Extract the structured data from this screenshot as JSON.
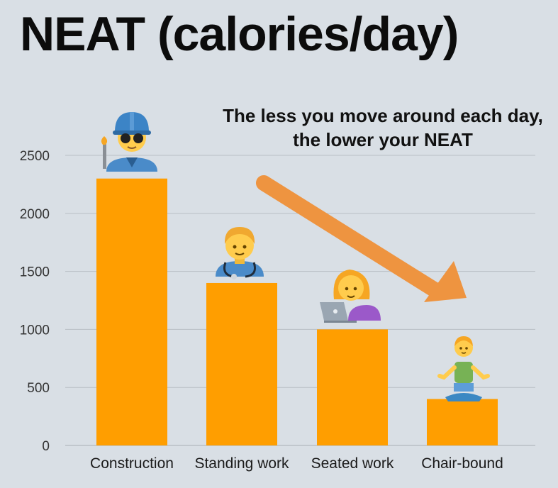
{
  "title": "NEAT (calories/day)",
  "annotation": "The less you move around each day, the lower your NEAT",
  "colors": {
    "background": "#d9dfe5",
    "bar": "#ff9e00",
    "arrow": "#ee9440",
    "grid": "#b9bfc5"
  },
  "figures": [
    {
      "category": "Construction",
      "icon": "construction-worker-icon"
    },
    {
      "category": "Standing work",
      "icon": "health-worker-icon"
    },
    {
      "category": "Seated work",
      "icon": "person-with-laptop-icon"
    },
    {
      "category": "Chair-bound",
      "icon": "person-in-lotus-position-icon"
    }
  ],
  "chart_data": {
    "type": "bar",
    "categories": [
      "Construction",
      "Standing work",
      "Seated work",
      "Chair-bound"
    ],
    "values": [
      2300,
      1400,
      1000,
      400
    ],
    "yticks": [
      0,
      500,
      1000,
      1500,
      2000,
      2500
    ],
    "ylim": [
      0,
      2500
    ],
    "grid": true,
    "xlabel": "",
    "ylabel": ""
  }
}
